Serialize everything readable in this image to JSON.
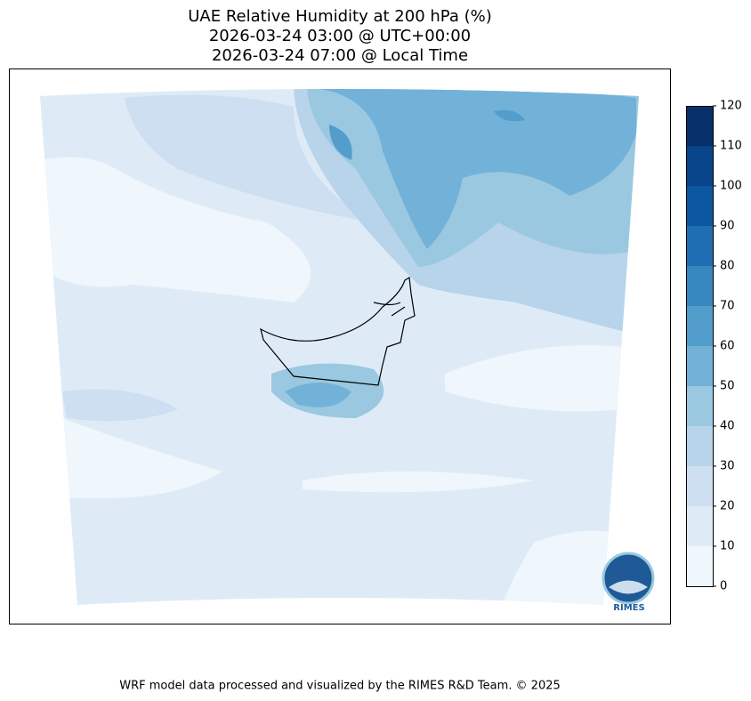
{
  "header": {
    "title_lines": [
      "UAE Relative Humidity at 200 hPa (%)",
      "2026-03-24 03:00 @ UTC+00:00",
      "2026-03-24 07:00 @ Local Time"
    ]
  },
  "colorbar": {
    "ticks": [
      0,
      10,
      20,
      30,
      40,
      50,
      60,
      70,
      80,
      90,
      100,
      110,
      120
    ],
    "colors": [
      "#eff6fc",
      "#deebf7",
      "#cddff1",
      "#b7d4ea",
      "#9ac8e0",
      "#73b2d8",
      "#529dcc",
      "#3787c0",
      "#1f6eb3",
      "#0d57a1",
      "#08458a",
      "#08306b"
    ]
  },
  "logo": {
    "text": "RIMES"
  },
  "footer": {
    "text": "WRF model data processed and visualized by the RIMES R&D Team. © 2025"
  }
}
